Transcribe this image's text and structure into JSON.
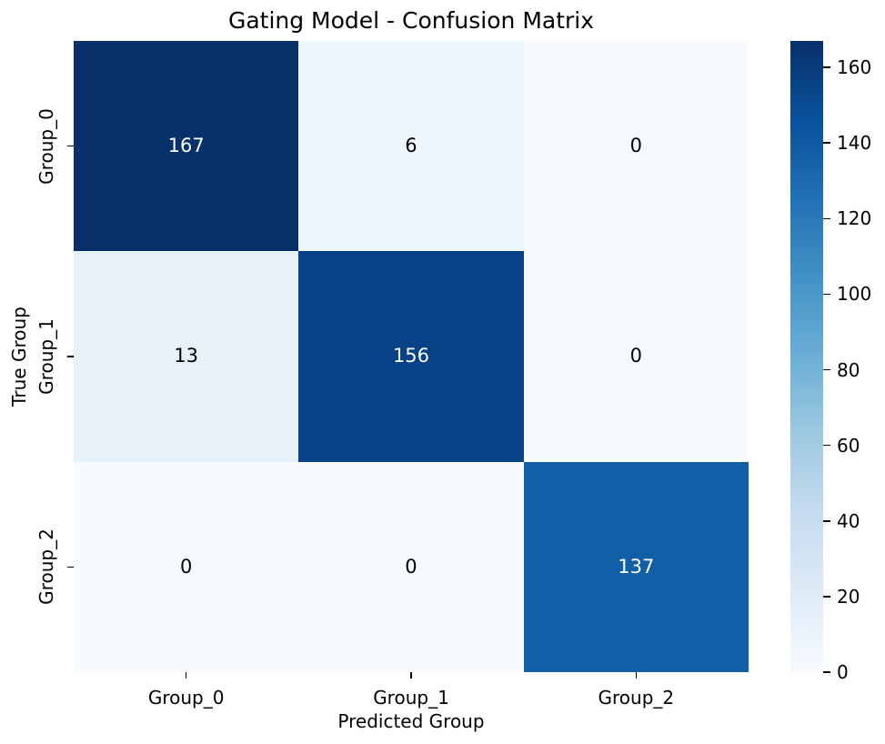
{
  "title": "Gating Model - Confusion Matrix",
  "chart_data": {
    "type": "heatmap",
    "title": "Gating Model - Confusion Matrix",
    "xlabel": "Predicted Group",
    "ylabel": "True Group",
    "x_categories": [
      "Group_0",
      "Group_1",
      "Group_2"
    ],
    "y_categories": [
      "Group_0",
      "Group_1",
      "Group_2"
    ],
    "matrix": [
      [
        167,
        6,
        0
      ],
      [
        13,
        156,
        0
      ],
      [
        0,
        0,
        137
      ]
    ],
    "vmin": 0,
    "vmax": 167,
    "colormap": "Blues",
    "colormap_stops": [
      "#f7fbff",
      "#deebf7",
      "#c6dbef",
      "#9ecae1",
      "#6baed6",
      "#4292c6",
      "#2171b5",
      "#08519c",
      "#08306b"
    ],
    "cell_colors": [
      [
        "#08306b",
        "#f0f6fd",
        "#f7fbff"
      ],
      [
        "#e7f1fa",
        "#084185",
        "#f7fbff"
      ],
      [
        "#f7fbff",
        "#f7fbff",
        "#135fa7"
      ]
    ],
    "annot_colors": [
      [
        "#ffffff",
        "#000000",
        "#000000"
      ],
      [
        "#000000",
        "#ffffff",
        "#000000"
      ],
      [
        "#000000",
        "#000000",
        "#ffffff"
      ]
    ],
    "colorbar_ticks": [
      0,
      20,
      40,
      60,
      80,
      100,
      120,
      140,
      160
    ],
    "legend_position": "right-colorbar",
    "grid": false,
    "background_color": "#ffffff",
    "tick_color": "#000000"
  }
}
